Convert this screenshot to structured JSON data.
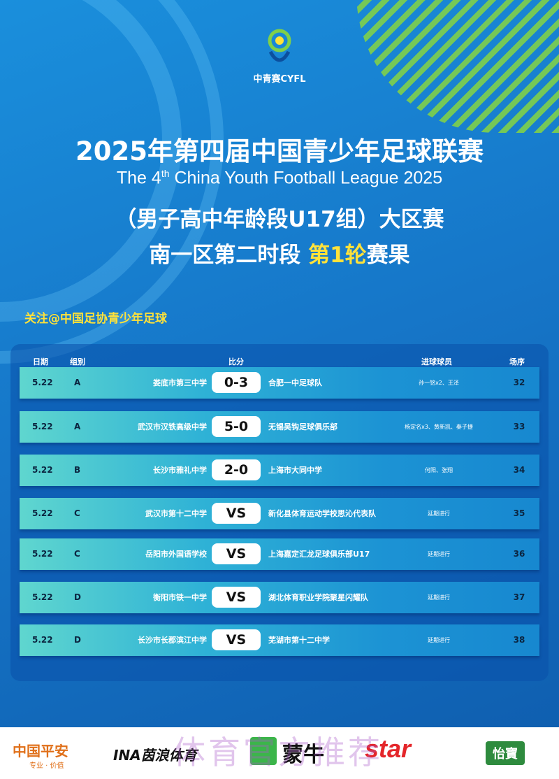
{
  "logo": {
    "text": "中青赛CYFL"
  },
  "title": {
    "line1": "2025年第四届中国青少年足球联赛",
    "line2_pre": "The 4",
    "line2_sup": "th",
    "line2_post": " China Youth Football League 2025",
    "line3": "（男子高中年龄段U17组）大区赛",
    "line4_pre": "南一区第二时段 ",
    "line4_hl": "第1轮",
    "line4_post": "赛果"
  },
  "follow": "关注@中国足协青少年足球",
  "headers": {
    "date": "日期",
    "group": "组别",
    "score": "比分",
    "scorers": "进球球员",
    "match_no": "场序"
  },
  "matches": [
    {
      "date": "5.22",
      "group": "A",
      "home": "娄底市第三中学",
      "score": "0-3",
      "away": "合肥一中足球队",
      "scorers": "孙一铭x2、王泽",
      "no": "32"
    },
    {
      "date": "5.22",
      "group": "A",
      "home": "武汉市汉铁高级中学",
      "score": "5-0",
      "away": "无锡吴钩足球俱乐部",
      "scorers": "杨定名x3、黄新凯、秦子捷",
      "no": "33"
    },
    {
      "date": "5.22",
      "group": "B",
      "home": "长沙市雅礼中学",
      "score": "2-0",
      "away": "上海市大同中学",
      "scorers": "何阳、张翔",
      "no": "34"
    },
    {
      "date": "5.22",
      "group": "C",
      "home": "武汉市第十二中学",
      "score": "VS",
      "away": "新化县体育运动学校思沁代表队",
      "scorers": "延期进行",
      "no": "35"
    },
    {
      "date": "5.22",
      "group": "C",
      "home": "岳阳市外国语学校",
      "score": "VS",
      "away": "上海嘉定汇龙足球俱乐部U17",
      "scorers": "延期进行",
      "no": "36"
    },
    {
      "date": "5.22",
      "group": "D",
      "home": "衡阳市铁一中学",
      "score": "VS",
      "away": "湖北体育职业学院聚星闪耀队",
      "scorers": "延期进行",
      "no": "37"
    },
    {
      "date": "5.22",
      "group": "D",
      "home": "长沙市长郡滨江中学",
      "score": "VS",
      "away": "芜湖市第十二中学",
      "scorers": "延期进行",
      "no": "38"
    }
  ],
  "sponsors": {
    "pingan": "中国平安",
    "pingan_sub": "专业 · 价值",
    "inlang": "INA茵浪体育",
    "mengniu": "蒙牛",
    "star": "star",
    "yibao": "怡寶"
  },
  "watermark": "体育官方推荐",
  "colors": {
    "highlight": "#ffe23a",
    "background": "#1676c8",
    "stripe": "#7fd04a"
  }
}
